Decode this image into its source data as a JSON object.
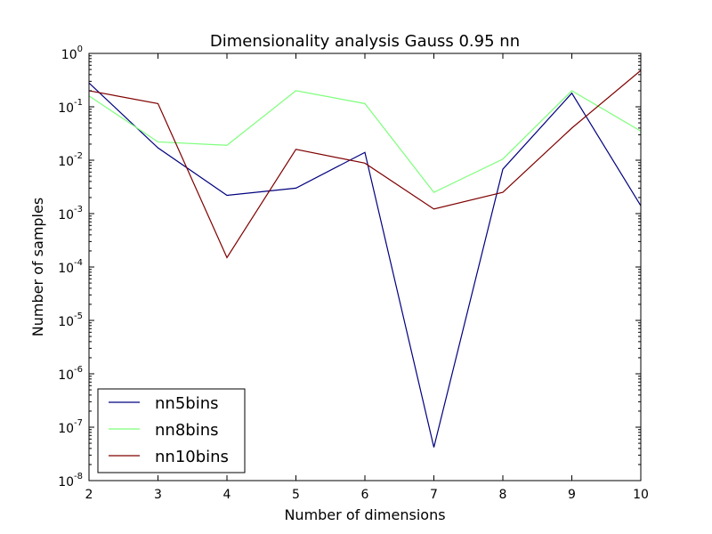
{
  "chart_data": {
    "type": "line",
    "title": "Dimensionality analysis Gauss 0.95 nn",
    "xlabel": "Number of dimensions",
    "ylabel": "Number of samples",
    "xlim": [
      2,
      10
    ],
    "ylim": [
      1e-08,
      1
    ],
    "yscale": "log",
    "grid": false,
    "legend_position": "lower-left",
    "x": [
      2,
      3,
      4,
      5,
      6,
      7,
      8,
      9,
      10
    ],
    "x_ticks": [
      "2",
      "3",
      "4",
      "5",
      "6",
      "7",
      "8",
      "9",
      "10"
    ],
    "y_ticks": [
      {
        "base": "10",
        "exp": "-8"
      },
      {
        "base": "10",
        "exp": "-7"
      },
      {
        "base": "10",
        "exp": "-6"
      },
      {
        "base": "10",
        "exp": "-5"
      },
      {
        "base": "10",
        "exp": "-4"
      },
      {
        "base": "10",
        "exp": "-3"
      },
      {
        "base": "10",
        "exp": "-2"
      },
      {
        "base": "10",
        "exp": "-1"
      },
      {
        "base": "10",
        "exp": "0"
      }
    ],
    "series": [
      {
        "name": "nn5bins",
        "color": "#00007f",
        "values": [
          0.28,
          0.017,
          0.0022,
          0.003,
          0.014,
          4.2e-08,
          0.0068,
          0.18,
          0.0014
        ]
      },
      {
        "name": "nn8bins",
        "color": "#7dff7a",
        "values": [
          0.16,
          0.022,
          0.019,
          0.2,
          0.115,
          0.0025,
          0.0105,
          0.2,
          0.035
        ]
      },
      {
        "name": "nn10bins",
        "color": "#7f0000",
        "values": [
          0.2,
          0.115,
          0.00015,
          0.016,
          0.0088,
          0.00122,
          0.0025,
          0.04,
          0.48
        ]
      }
    ]
  }
}
